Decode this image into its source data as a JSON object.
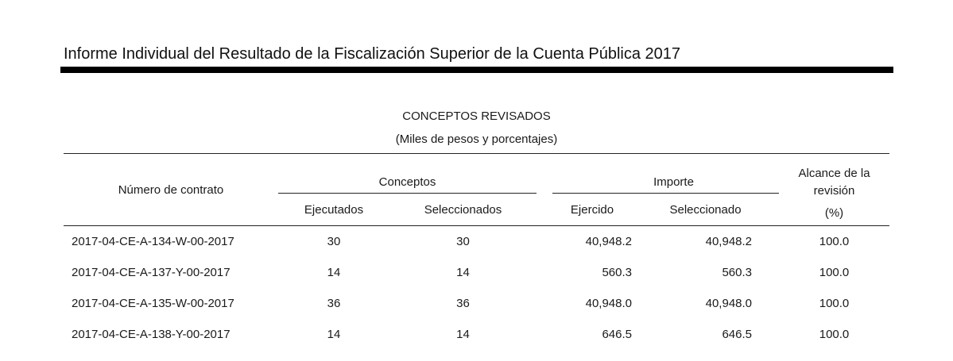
{
  "document": {
    "header_title": "Informe Individual del Resultado de la Fiscalización Superior de la Cuenta Pública 2017"
  },
  "table_caption": {
    "title": "CONCEPTOS REVISADOS",
    "subtitle": "(Miles de pesos y porcentajes)"
  },
  "table": {
    "headers": {
      "contract": "Número de contrato",
      "conceptos_group": "Conceptos",
      "importe_group": "Importe",
      "alcance": "Alcance de la revisión",
      "alcance_unit": "(%)",
      "ejecutados": "Ejecutados",
      "seleccionados": "Seleccionados",
      "ejercido": "Ejercido",
      "seleccionado": "Seleccionado"
    },
    "rows": [
      {
        "contract": "2017-04-CE-A-134-W-00-2017",
        "ejecutados": "30",
        "seleccionados": "30",
        "ejercido": "40,948.2",
        "seleccionado": "40,948.2",
        "alcance": "100.0"
      },
      {
        "contract": "2017-04-CE-A-137-Y-00-2017",
        "ejecutados": "14",
        "seleccionados": "14",
        "ejercido": "560.3",
        "seleccionado": "560.3",
        "alcance": "100.0"
      },
      {
        "contract": "2017-04-CE-A-135-W-00-2017",
        "ejecutados": "36",
        "seleccionados": "36",
        "ejercido": "40,948.0",
        "seleccionado": "40,948.0",
        "alcance": "100.0"
      },
      {
        "contract": "2017-04-CE-A-138-Y-00-2017",
        "ejecutados": "14",
        "seleccionados": "14",
        "ejercido": "646.5",
        "seleccionado": "646.5",
        "alcance": "100.0"
      }
    ]
  }
}
